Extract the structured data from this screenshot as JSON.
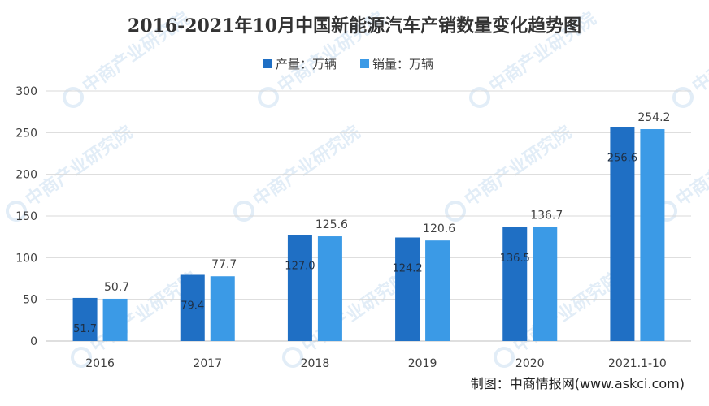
{
  "chart_data": {
    "type": "bar",
    "title": "2016-2021年10月中国新能源汽车产销数量变化趋势图",
    "categories": [
      "2016",
      "2017",
      "2018",
      "2019",
      "2020",
      "2021.1-10"
    ],
    "series": [
      {
        "name": "产量：万辆",
        "color": "#1f6fc4",
        "values": [
          51.7,
          79.4,
          127.0,
          124.2,
          136.5,
          256.6
        ],
        "value_labels": [
          "51.7",
          "79.4",
          "127.0",
          "124.2",
          "136.5",
          "256.6"
        ]
      },
      {
        "name": "销量：万辆",
        "color": "#3b9ae6",
        "values": [
          50.7,
          77.7,
          125.6,
          120.6,
          136.7,
          254.2
        ],
        "value_labels": [
          "50.7",
          "77.7",
          "125.6",
          "120.6",
          "136.7",
          "254.2"
        ]
      }
    ],
    "ylim": [
      0,
      300
    ],
    "yticks": [
      0,
      50,
      100,
      150,
      200,
      250,
      300
    ],
    "grid": true,
    "legend_position": "top-center"
  },
  "source": "制图：中商情报网(www.askci.com)",
  "watermark": "中商产业研究院"
}
